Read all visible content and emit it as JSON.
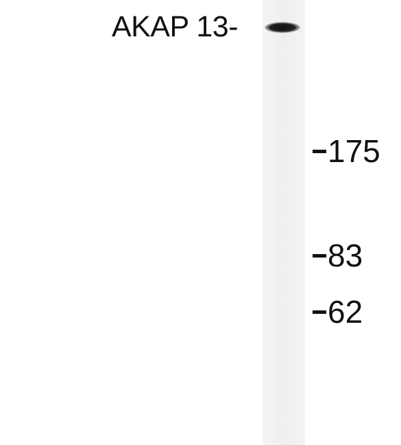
{
  "band": {
    "label": "AKAP 13-"
  },
  "markers": [
    {
      "label": "175"
    },
    {
      "label": "83"
    },
    {
      "label": "62"
    }
  ],
  "colors": {
    "band": "#1a1a1a",
    "lane": "#f2f2f4",
    "text": "#111111"
  }
}
